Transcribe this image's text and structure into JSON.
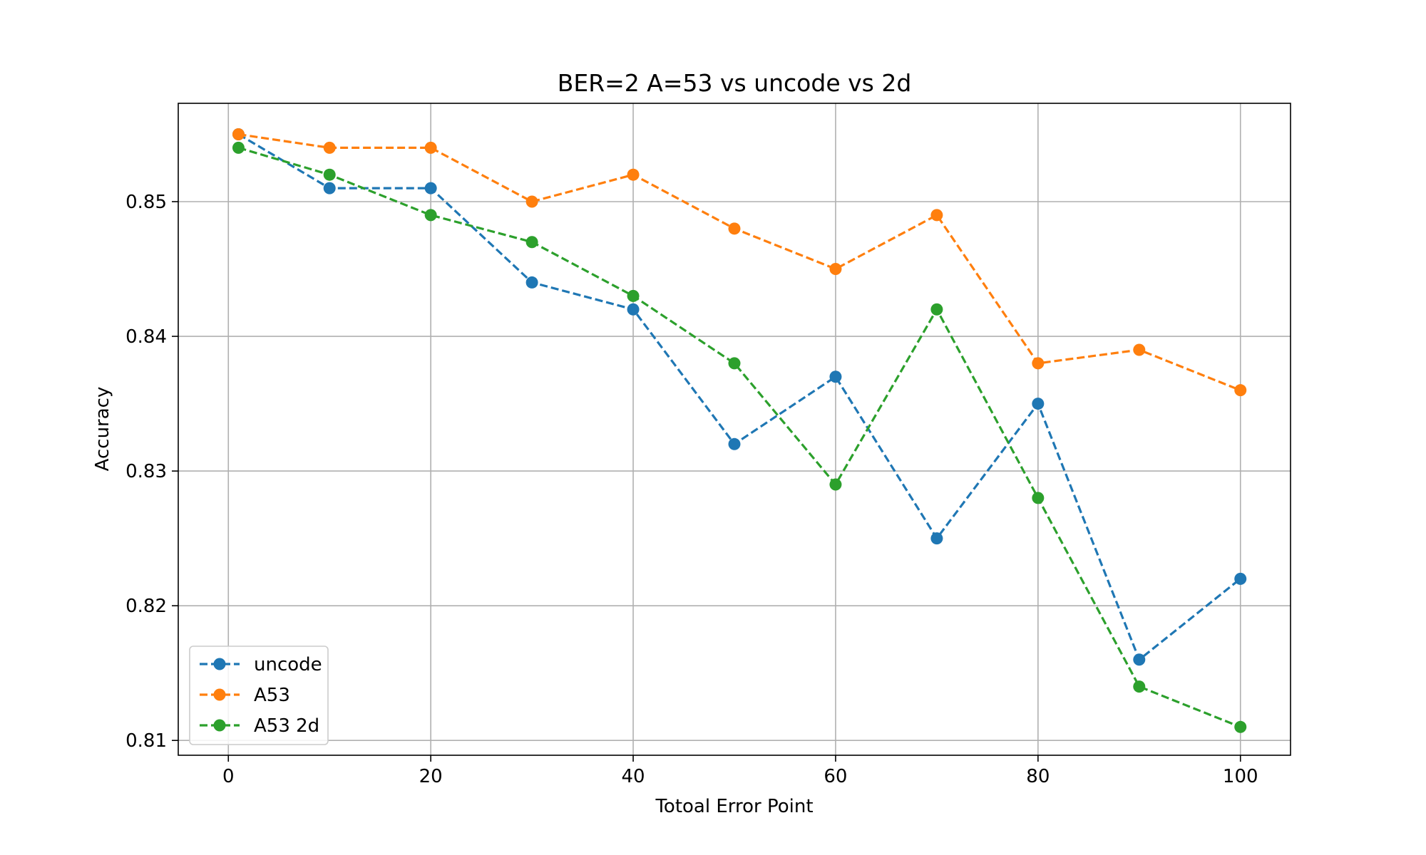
{
  "chart_data": {
    "type": "line",
    "title": "BER=2 A=53 vs uncode vs 2d",
    "xlabel": "Totoal Error Point",
    "ylabel": "Accuracy",
    "xlim": [
      -4.95,
      104.95
    ],
    "ylim": [
      0.8089,
      0.8573
    ],
    "xticks": [
      0,
      20,
      40,
      60,
      80,
      100
    ],
    "yticks": [
      0.81,
      0.82,
      0.83,
      0.84,
      0.85
    ],
    "ytick_labels": [
      "0.81",
      "0.82",
      "0.83",
      "0.84",
      "0.85"
    ],
    "grid": true,
    "legend_position": "lower-left",
    "line_style": "dashed",
    "marker": "circle",
    "x": [
      1,
      10,
      20,
      30,
      40,
      50,
      60,
      70,
      80,
      90,
      100
    ],
    "series": [
      {
        "name": "uncode",
        "color": "#1f77b4",
        "values": [
          0.855,
          0.851,
          0.851,
          0.844,
          0.842,
          0.832,
          0.837,
          0.825,
          0.835,
          0.816,
          0.822
        ]
      },
      {
        "name": "A53",
        "color": "#ff7f0e",
        "values": [
          0.855,
          0.854,
          0.854,
          0.85,
          0.852,
          0.848,
          0.845,
          0.849,
          0.838,
          0.839,
          0.836
        ]
      },
      {
        "name": "A53 2d",
        "color": "#2ca02c",
        "values": [
          0.854,
          0.852,
          0.849,
          0.847,
          0.843,
          0.838,
          0.829,
          0.842,
          0.828,
          0.814,
          0.811
        ]
      }
    ]
  }
}
